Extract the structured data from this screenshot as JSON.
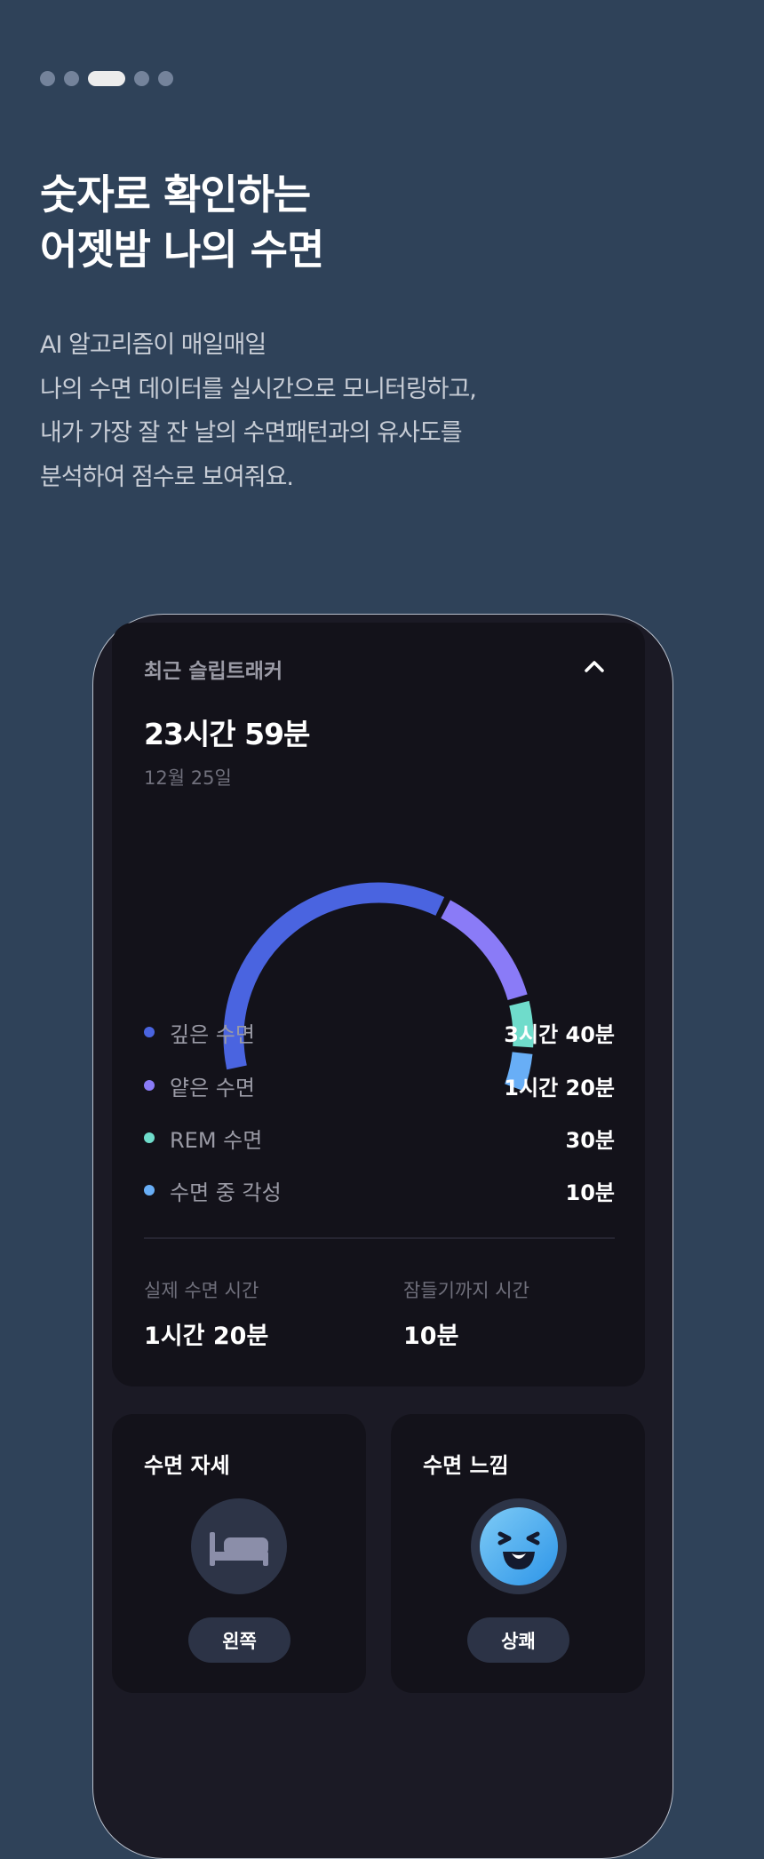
{
  "pager": {
    "count": 5,
    "active_index": 2
  },
  "hero": {
    "title_lines": [
      "숫자로 확인하는",
      "어젯밤 나의 수면"
    ],
    "description_lines": [
      "AI 알고리즘이 매일매일",
      "나의 수면 데이터를 실시간으로 모니터링하고,",
      "내가 가장 잘 잔 날의 수면패턴과의 유사도를",
      "분석하여 점수로 보여줘요."
    ]
  },
  "tracker": {
    "header": "최근 슬립트래커",
    "collapse_icon": "chevron-up-icon",
    "total": "23시간 59분",
    "date": "12월 25일",
    "stages": [
      {
        "label": "깊은 수면",
        "value": "3시간 40분",
        "minutes": 220,
        "color": "#4a64e0"
      },
      {
        "label": "얕은 수면",
        "value": "1시간 20분",
        "minutes": 80,
        "color": "#8a7bf7"
      },
      {
        "label": "REM 수면",
        "value": "30분",
        "minutes": 30,
        "color": "#6fdccb"
      },
      {
        "label": "수면 중 각성",
        "value": "10분",
        "minutes": 10,
        "color": "#68aef6"
      }
    ],
    "actual_sleep": {
      "label": "실제 수면 시간",
      "value": "1시간 20분"
    },
    "time_to_sleep": {
      "label": "잠들기까지 시간",
      "value": "10분"
    }
  },
  "posture": {
    "title": "수면 자세",
    "icon": "bed-icon",
    "value": "왼쪽"
  },
  "feeling": {
    "title": "수면 느낌",
    "icon": "laughing-face-icon",
    "value": "상쾌"
  }
}
